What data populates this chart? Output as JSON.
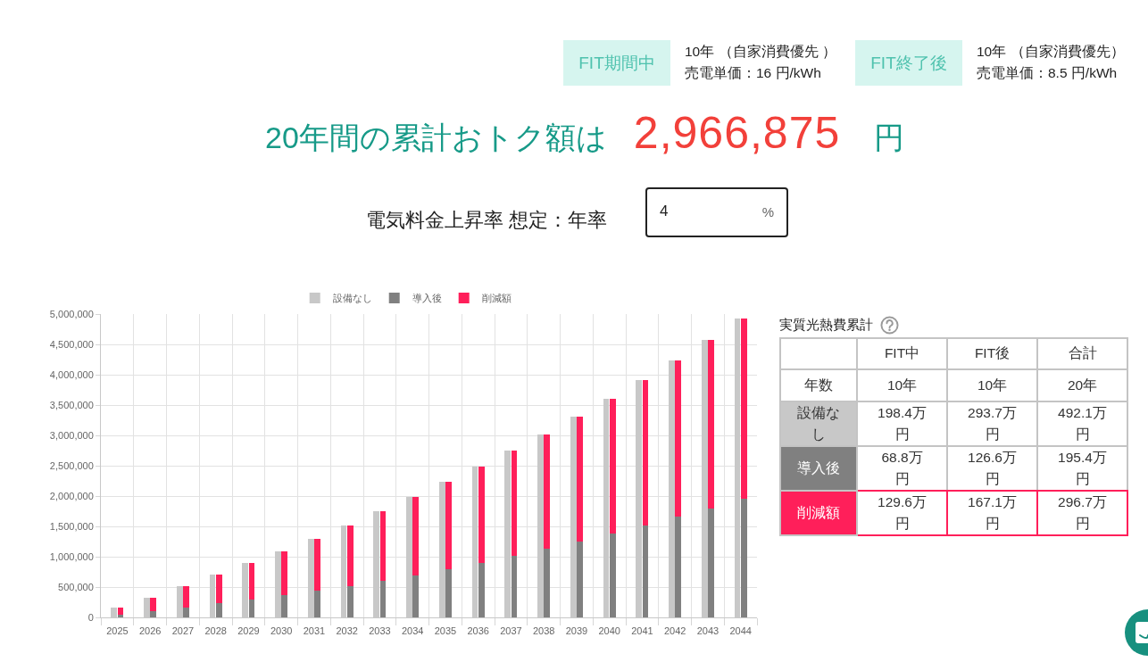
{
  "chart_data": [
    {
      "type": "other",
      "annotations": [
        "FIT期間中",
        "10年 （自家消費優先 ）",
        "売電単価：16 円/kWh",
        "FIT終了後",
        "10年 （自家消費優先）",
        "売電単価：8.5 円/kWh",
        "20年間の累計おトク額は",
        "2,966,875",
        "円",
        "電気料金上昇率 想定：年率",
        "4",
        "%"
      ]
    },
    {
      "type": "bar",
      "categories": [
        "2025",
        "2026",
        "2027",
        "2028",
        "2029",
        "2030",
        "2031",
        "2032",
        "2033",
        "2034",
        "2035",
        "2036",
        "2037",
        "2038",
        "2039",
        "2040",
        "2041",
        "2042",
        "2043",
        "2044"
      ],
      "series": [
        {
          "name": "設備なし",
          "color": "#c8c8c8",
          "values": [
            160000,
            330000,
            510000,
            700000,
            890000,
            1090000,
            1300000,
            1520000,
            1750000,
            1980000,
            2230000,
            2480000,
            2750000,
            3020000,
            3310000,
            3600000,
            3910000,
            4240000,
            4570000,
            4920000
          ]
        }
      ],
      "ylim": [
        0,
        5000000
      ],
      "yticks": [
        0,
        {
          "value": 500000,
          "label": "500,000"
        },
        {
          "value": 1000000,
          "label": "1,000,000"
        },
        {
          "value": 1500000,
          "label": "1,500,000"
        },
        {
          "value": 2000000,
          "label": "2,000,000"
        },
        {
          "value": 2500000,
          "label": "2,500,000"
        },
        {
          "value": 3000000,
          "label": "3,000,000"
        },
        {
          "value": 3500000,
          "label": "3,500,000"
        },
        {
          "value": 4000000,
          "label": "4,000,000"
        },
        {
          "value": 4500000,
          "label": "4,500,000"
        },
        {
          "value": 5000000,
          "label": "5,000,000"
        }
      ],
      "grid": true,
      "legend": "top"
    },
    {
      "type": "bar",
      "categories": [
        "2025",
        "2026",
        "2027",
        "2028",
        "2029",
        "2030",
        "2031",
        "2032",
        "2033",
        "2034",
        "2035",
        "2036",
        "2037",
        "2038",
        "2039",
        "2040",
        "2041",
        "2042",
        "2043",
        "2044"
      ],
      "series": [
        {
          "name": "導入後",
          "color": "#808080",
          "values": [
            50000,
            100000,
            160000,
            230000,
            290000,
            370000,
            440000,
            520000,
            600000,
            690000,
            790000,
            900000,
            1010000,
            1130000,
            1250000,
            1380000,
            1520000,
            1660000,
            1800000,
            1950000
          ]
        },
        {
          "name": "削減額",
          "color": "#ff1f5a",
          "values": [
            110000,
            230000,
            350000,
            470000,
            600000,
            720000,
            860000,
            1000000,
            1150000,
            1290000,
            1440000,
            1580000,
            1740000,
            1890000,
            2060000,
            2220000,
            2390000,
            2580000,
            2770000,
            2970000
          ]
        }
      ],
      "stacked": true,
      "ylim": [
        0,
        5000000
      ],
      "tick_labels": false,
      "legend": "top"
    },
    {
      "type": "other",
      "title": "実質光熱費累計",
      "categories": [
        "FIT中",
        "FIT後",
        "合計"
      ],
      "y_categories": [
        "年数",
        "設備なし",
        "導入後",
        "削減額"
      ],
      "cell_labels": [
        [
          "10年",
          "10年",
          "20年"
        ],
        [
          "198.4万円",
          "293.7万円",
          "492.1万円"
        ],
        [
          "68.8万円",
          "126.6万円",
          "195.4万円"
        ],
        [
          "129.6万円",
          "167.1万円",
          "296.7万円"
        ]
      ],
      "colors": [
        null,
        "#c8c8c8",
        "#808080",
        "#ff1f5a"
      ]
    }
  ]
}
